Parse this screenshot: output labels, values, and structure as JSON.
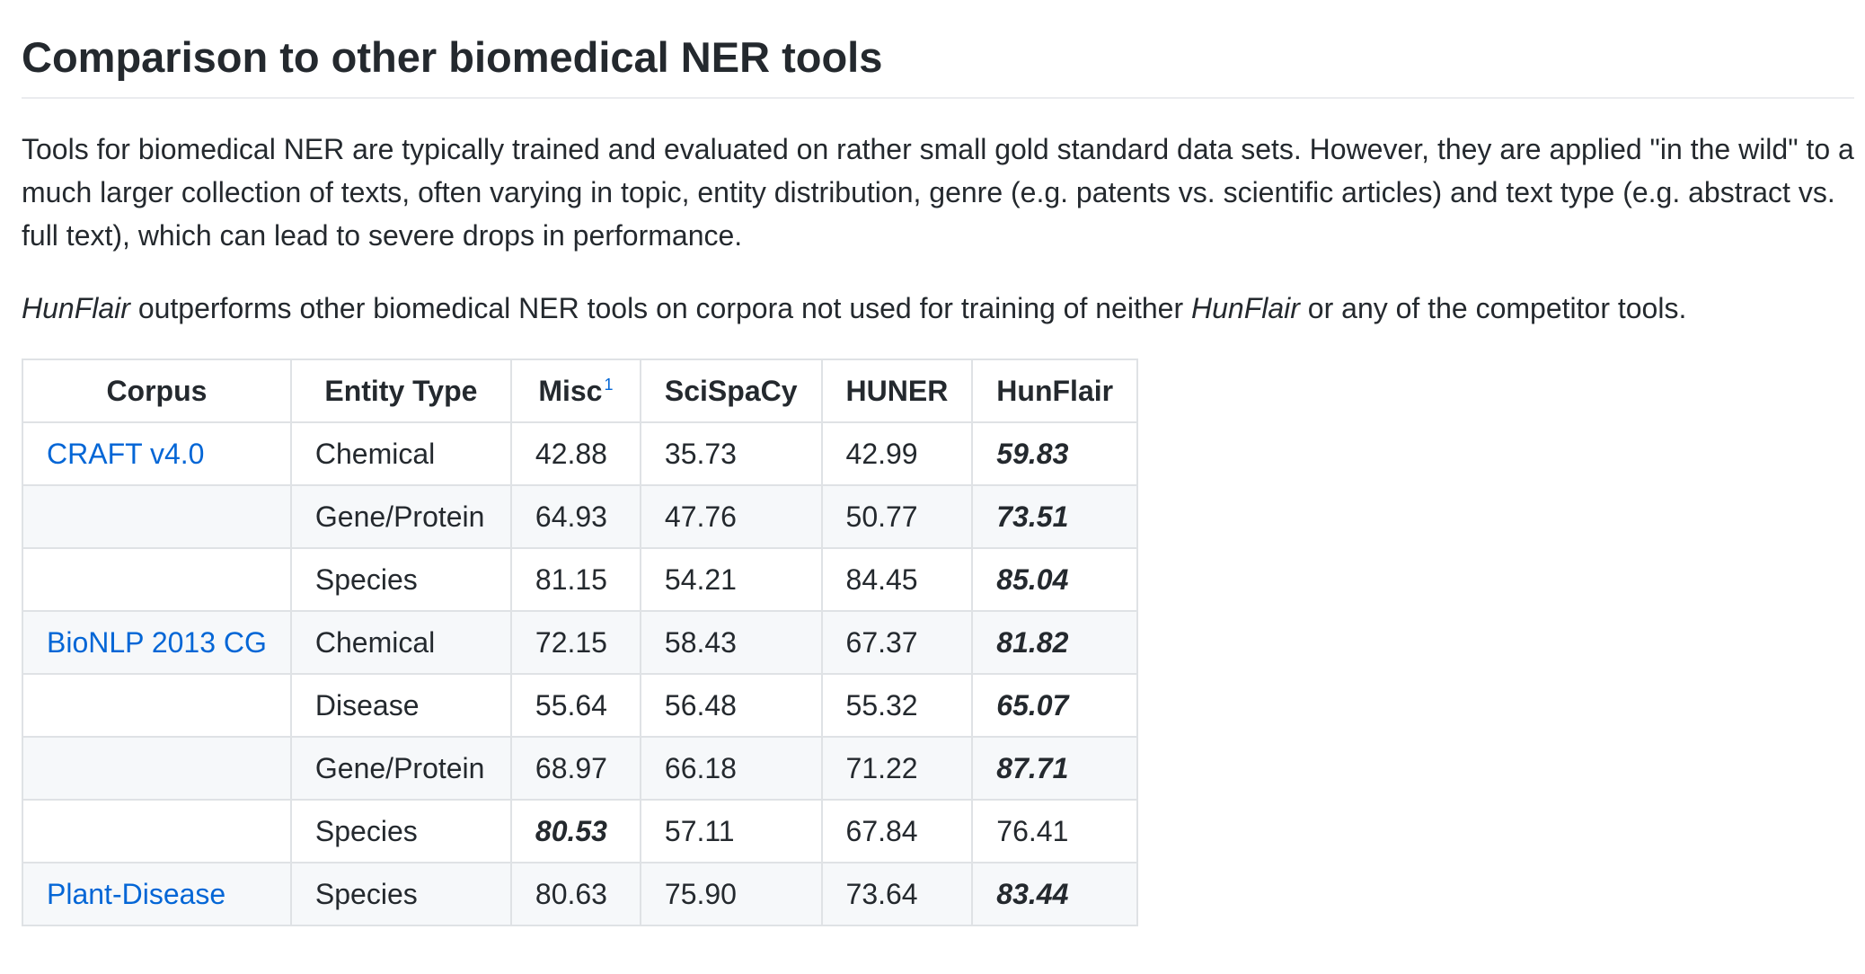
{
  "heading": "Comparison to other biomedical NER tools",
  "intro": {
    "paragraph1": "Tools for biomedical NER are typically trained and evaluated on rather small gold standard data sets. However, they are applied \"in the wild\" to a much larger collection of texts, often varying in topic, entity distribution, genre (e.g. patents vs. scientific articles) and text type (e.g. abstract vs. full text), which can lead to severe drops in performance.",
    "paragraph2_em1": "HunFlair",
    "paragraph2_text1": " outperforms other biomedical NER tools on corpora not used for training of neither ",
    "paragraph2_em2": "HunFlair",
    "paragraph2_text2": " or any of the competitor tools."
  },
  "table": {
    "headers": {
      "corpus": "Corpus",
      "entity_type": "Entity Type",
      "misc": "Misc",
      "misc_footnote": "1",
      "scispacy": "SciSpaCy",
      "huner": "HUNER",
      "hunflair": "HunFlair"
    },
    "rows": [
      {
        "corpus": "CRAFT v4.0",
        "type": "Chemical",
        "misc": "42.88",
        "scispacy": "35.73",
        "huner": "42.99",
        "hunflair": "59.83"
      },
      {
        "corpus": "",
        "type": "Gene/Protein",
        "misc": "64.93",
        "scispacy": "47.76",
        "huner": "50.77",
        "hunflair": "73.51"
      },
      {
        "corpus": "",
        "type": "Species",
        "misc": "81.15",
        "scispacy": "54.21",
        "huner": "84.45",
        "hunflair": "85.04"
      },
      {
        "corpus": "BioNLP 2013 CG",
        "type": "Chemical",
        "misc": "72.15",
        "scispacy": "58.43",
        "huner": "67.37",
        "hunflair": "81.82"
      },
      {
        "corpus": "",
        "type": "Disease",
        "misc": "55.64",
        "scispacy": "56.48",
        "huner": "55.32",
        "hunflair": "65.07"
      },
      {
        "corpus": "",
        "type": "Gene/Protein",
        "misc": "68.97",
        "scispacy": "66.18",
        "huner": "71.22",
        "hunflair": "87.71"
      },
      {
        "corpus": "",
        "type": "Species",
        "misc": "80.53",
        "scispacy": "57.11",
        "huner": "67.84",
        "hunflair": "76.41"
      },
      {
        "corpus": "Plant-Disease",
        "type": "Species",
        "misc": "80.63",
        "scispacy": "75.90",
        "huner": "73.64",
        "hunflair": "83.44"
      }
    ]
  }
}
